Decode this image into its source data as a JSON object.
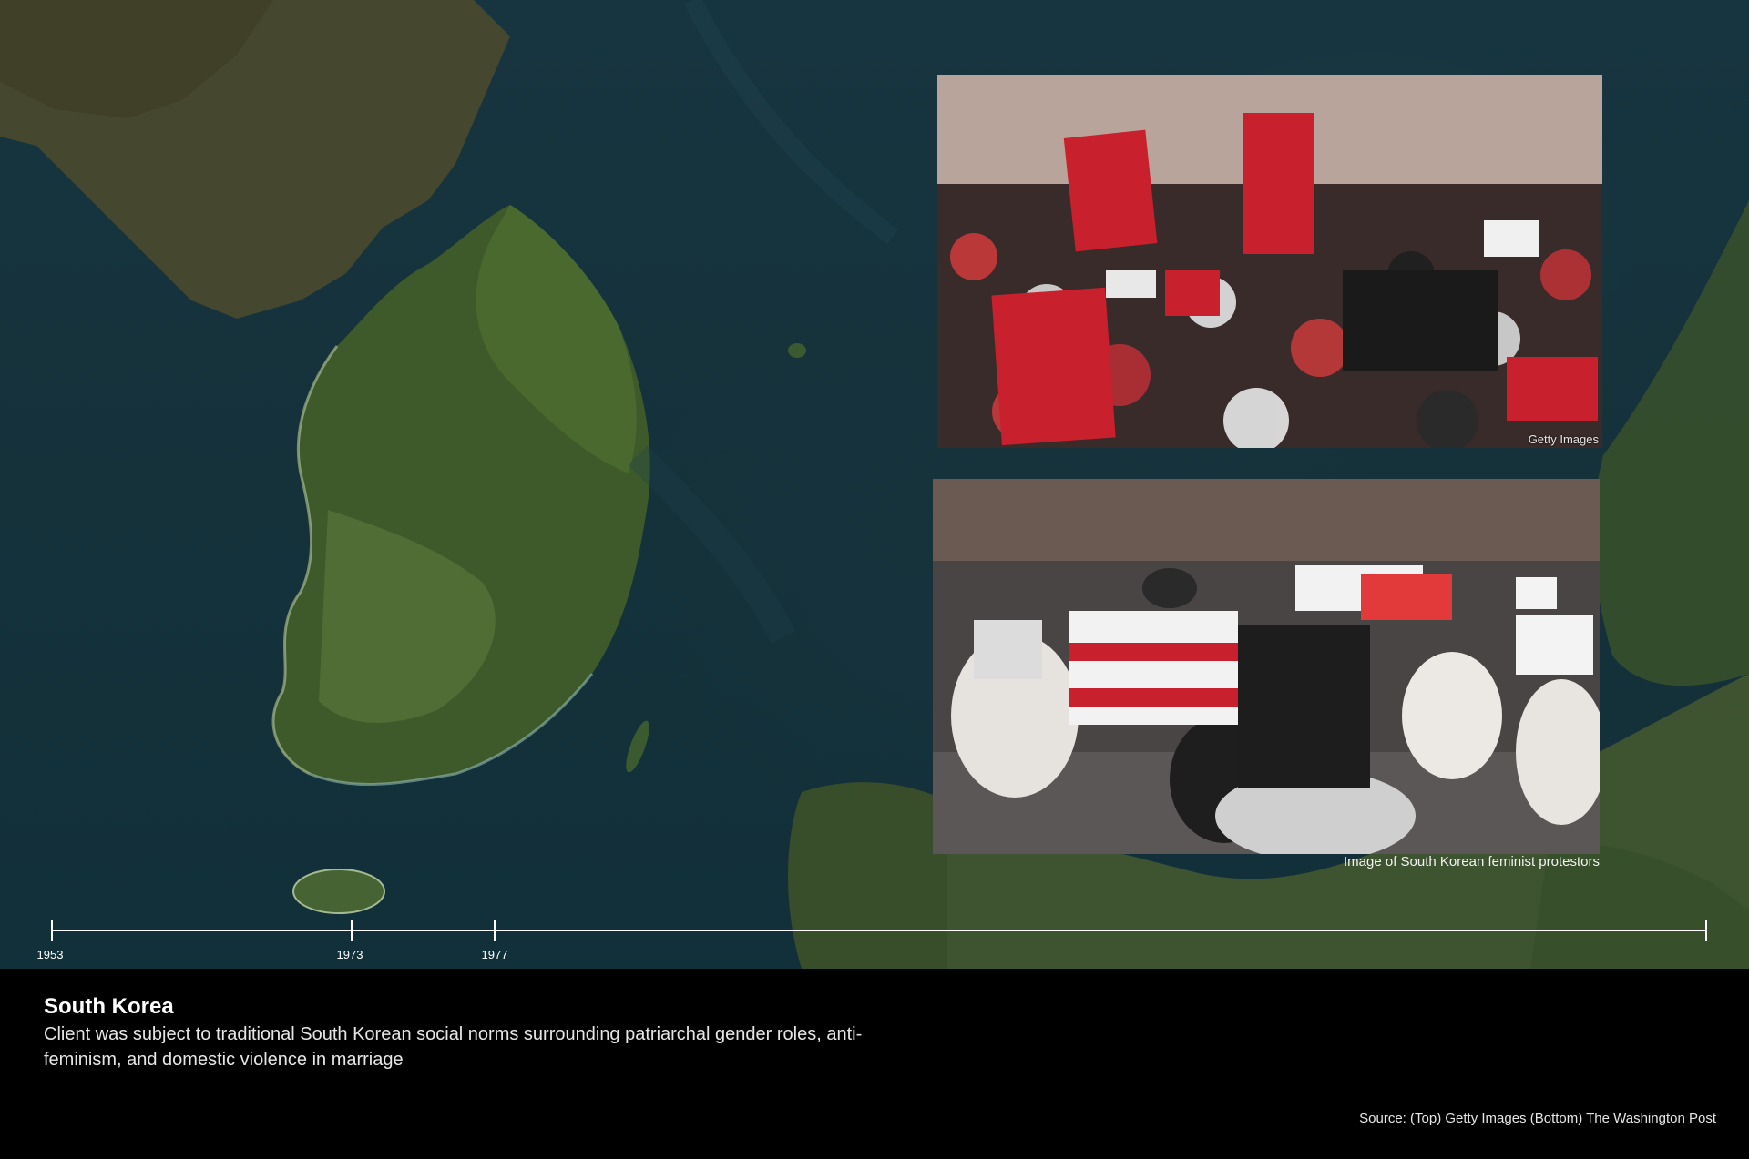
{
  "photos": {
    "top_credit": "Getty Images",
    "bottom_caption": "Image of South Korean feminist protestors"
  },
  "timeline": {
    "labels": [
      "1953",
      "1973",
      "1977"
    ]
  },
  "footer": {
    "title": "South Korea",
    "description": "Client was subject to traditional South Korean social norms surrounding patriarchal gender roles, anti-feminism, and domestic violence in marriage",
    "source": "Source: (Top) Getty Images (Bottom) The Washington Post"
  }
}
